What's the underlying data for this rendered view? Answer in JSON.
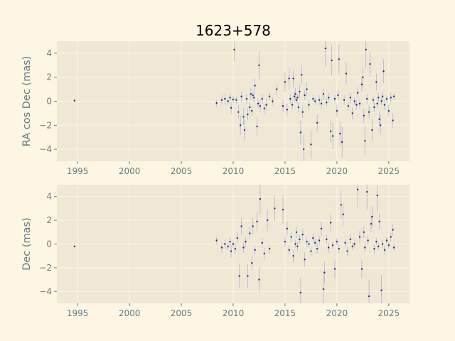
{
  "chart_data": [
    {
      "type": "scatter",
      "title": "1623+578",
      "ylabel": "RA cos Dec (mas)",
      "xlim": [
        1993,
        2027
      ],
      "ylim": [
        -5,
        5
      ],
      "xticks": [
        1995,
        2000,
        2005,
        2010,
        2015,
        2020,
        2025
      ],
      "yticks": [
        -4,
        -2,
        0,
        2,
        4
      ],
      "grid": true,
      "points": [
        [
          1994.7,
          0.05,
          0.0
        ],
        [
          2008.4,
          -0.15,
          0.3
        ],
        [
          2008.9,
          0.1,
          0.4
        ],
        [
          2009.2,
          0.2,
          0.5
        ],
        [
          2009.5,
          0.0,
          0.3
        ],
        [
          2009.7,
          0.3,
          0.4
        ],
        [
          2009.8,
          -0.55,
          0.5
        ],
        [
          2010.0,
          0.15,
          0.3
        ],
        [
          2010.1,
          4.3,
          1.0
        ],
        [
          2010.3,
          0.1,
          0.3
        ],
        [
          2010.5,
          -0.9,
          0.6
        ],
        [
          2010.7,
          -2.0,
          0.8
        ],
        [
          2010.8,
          0.4,
          0.4
        ],
        [
          2011.0,
          -1.3,
          0.7
        ],
        [
          2011.1,
          -2.4,
          0.9
        ],
        [
          2011.3,
          0.2,
          0.4
        ],
        [
          2011.4,
          -1.1,
          0.5
        ],
        [
          2011.6,
          -0.5,
          0.4
        ],
        [
          2011.7,
          0.6,
          0.5
        ],
        [
          2011.8,
          -0.8,
          0.4
        ],
        [
          2011.9,
          0.5,
          0.3
        ],
        [
          2012.0,
          0.3,
          0.4
        ],
        [
          2012.1,
          1.3,
          0.6
        ],
        [
          2012.3,
          -2.1,
          0.8
        ],
        [
          2012.4,
          -0.2,
          0.4
        ],
        [
          2012.5,
          3.0,
          1.2
        ],
        [
          2012.6,
          -0.4,
          0.5
        ],
        [
          2012.8,
          0.2,
          0.4
        ],
        [
          2013.0,
          -0.6,
          0.4
        ],
        [
          2013.2,
          -0.3,
          0.5
        ],
        [
          2013.5,
          0.4,
          0.3
        ],
        [
          2013.8,
          0.0,
          0.3
        ],
        [
          2014.2,
          1.0,
          0.5
        ],
        [
          2014.8,
          -0.4,
          0.5
        ],
        [
          2015.0,
          1.6,
          0.8
        ],
        [
          2015.2,
          -0.7,
          0.5
        ],
        [
          2015.4,
          1.9,
          0.9
        ],
        [
          2015.5,
          0.2,
          0.4
        ],
        [
          2015.7,
          -0.3,
          0.4
        ],
        [
          2015.8,
          1.9,
          0.7
        ],
        [
          2015.9,
          0.4,
          0.4
        ],
        [
          2016.0,
          0.6,
          0.5
        ],
        [
          2016.1,
          0.1,
          0.3
        ],
        [
          2016.2,
          0.3,
          0.3
        ],
        [
          2016.3,
          -0.5,
          0.4
        ],
        [
          2016.4,
          0.8,
          0.5
        ],
        [
          2016.5,
          -2.6,
          1.0
        ],
        [
          2016.6,
          2.2,
          0.8
        ],
        [
          2016.7,
          -0.9,
          0.5
        ],
        [
          2016.8,
          -4.0,
          1.2
        ],
        [
          2016.9,
          0.5,
          0.4
        ],
        [
          2017.1,
          1.0,
          0.6
        ],
        [
          2017.3,
          -0.3,
          0.4
        ],
        [
          2017.5,
          -3.6,
          1.2
        ],
        [
          2017.7,
          0.2,
          0.3
        ],
        [
          2017.9,
          0.0,
          0.3
        ],
        [
          2018.1,
          -1.8,
          0.7
        ],
        [
          2018.3,
          0.1,
          0.4
        ],
        [
          2018.5,
          -0.2,
          0.4
        ],
        [
          2018.7,
          0.6,
          0.5
        ],
        [
          2018.9,
          4.4,
          1.5
        ],
        [
          2019.0,
          -0.1,
          0.3
        ],
        [
          2019.2,
          0.3,
          0.4
        ],
        [
          2019.4,
          -2.5,
          0.9
        ],
        [
          2019.5,
          3.4,
          1.3
        ],
        [
          2019.6,
          -2.9,
          1.1
        ],
        [
          2019.8,
          0.2,
          0.3
        ],
        [
          2020.0,
          -0.8,
          0.5
        ],
        [
          2020.1,
          0.5,
          0.4
        ],
        [
          2020.2,
          3.5,
          1.2
        ],
        [
          2020.3,
          -2.7,
          1.0
        ],
        [
          2020.5,
          -3.4,
          1.3
        ],
        [
          2020.7,
          0.1,
          0.4
        ],
        [
          2020.9,
          2.3,
          0.9
        ],
        [
          2021.1,
          -0.4,
          0.4
        ],
        [
          2021.3,
          0.3,
          0.4
        ],
        [
          2021.5,
          -1.0,
          0.5
        ],
        [
          2021.7,
          0.0,
          0.3
        ],
        [
          2021.9,
          -0.3,
          0.4
        ],
        [
          2022.0,
          0.7,
          0.5
        ],
        [
          2022.2,
          -0.2,
          0.4
        ],
        [
          2022.4,
          1.4,
          0.6
        ],
        [
          2022.5,
          2.0,
          0.8
        ],
        [
          2022.6,
          -1.2,
          0.6
        ],
        [
          2022.7,
          -3.3,
          1.2
        ],
        [
          2022.8,
          4.3,
          1.5
        ],
        [
          2022.9,
          0.2,
          0.4
        ],
        [
          2023.1,
          -0.9,
          0.5
        ],
        [
          2023.2,
          3.1,
          1.1
        ],
        [
          2023.4,
          -2.4,
          0.9
        ],
        [
          2023.5,
          0.1,
          0.3
        ],
        [
          2023.6,
          -0.5,
          0.4
        ],
        [
          2023.8,
          1.6,
          0.7
        ],
        [
          2023.9,
          -0.2,
          0.3
        ],
        [
          2024.0,
          0.3,
          0.4
        ],
        [
          2024.1,
          -1.5,
          0.6
        ],
        [
          2024.2,
          -2.0,
          0.8
        ],
        [
          2024.3,
          0.0,
          0.3
        ],
        [
          2024.4,
          0.4,
          0.4
        ],
        [
          2024.5,
          2.5,
          1.0
        ],
        [
          2024.6,
          -0.3,
          0.4
        ],
        [
          2024.8,
          0.2,
          0.3
        ],
        [
          2025.0,
          -0.8,
          0.5
        ],
        [
          2025.2,
          0.3,
          0.4
        ],
        [
          2025.4,
          -1.6,
          0.6
        ],
        [
          2025.5,
          0.4,
          0.3
        ]
      ]
    },
    {
      "type": "scatter",
      "title": "",
      "ylabel": "Dec (mas)",
      "xlim": [
        1993,
        2027
      ],
      "ylim": [
        -5,
        5
      ],
      "xticks": [
        1995,
        2000,
        2005,
        2010,
        2015,
        2020,
        2025
      ],
      "yticks": [
        -4,
        -2,
        0,
        2,
        4
      ],
      "grid": true,
      "points": [
        [
          1994.7,
          -0.2,
          0.0
        ],
        [
          2008.4,
          0.3,
          0.3
        ],
        [
          2008.9,
          -0.3,
          0.4
        ],
        [
          2009.2,
          0.0,
          0.4
        ],
        [
          2009.5,
          -0.2,
          0.3
        ],
        [
          2009.7,
          0.2,
          0.4
        ],
        [
          2009.8,
          -0.6,
          0.5
        ],
        [
          2010.0,
          0.0,
          0.3
        ],
        [
          2010.2,
          -0.4,
          0.4
        ],
        [
          2010.4,
          0.5,
          0.5
        ],
        [
          2010.6,
          -2.7,
          1.0
        ],
        [
          2010.8,
          1.5,
          0.7
        ],
        [
          2011.0,
          -0.3,
          0.4
        ],
        [
          2011.2,
          0.2,
          0.4
        ],
        [
          2011.4,
          -2.7,
          1.0
        ],
        [
          2011.6,
          0.9,
          0.5
        ],
        [
          2011.8,
          -1.6,
          0.6
        ],
        [
          2011.9,
          1.5,
          0.7
        ],
        [
          2012.1,
          -0.5,
          0.4
        ],
        [
          2012.3,
          1.9,
          0.8
        ],
        [
          2012.5,
          -3.0,
          1.1
        ],
        [
          2012.6,
          3.8,
          1.3
        ],
        [
          2012.8,
          0.1,
          0.4
        ],
        [
          2013.0,
          -0.8,
          0.5
        ],
        [
          2013.3,
          2.0,
          0.9
        ],
        [
          2013.5,
          -0.4,
          0.4
        ],
        [
          2014.0,
          3.0,
          1.1
        ],
        [
          2014.8,
          2.9,
          1.2
        ],
        [
          2015.0,
          0.2,
          0.4
        ],
        [
          2015.2,
          1.3,
          0.6
        ],
        [
          2015.4,
          -0.5,
          0.4
        ],
        [
          2015.6,
          0.6,
          0.4
        ],
        [
          2015.8,
          -1.0,
          0.5
        ],
        [
          2016.0,
          0.0,
          0.3
        ],
        [
          2016.1,
          1.0,
          0.5
        ],
        [
          2016.2,
          -0.2,
          0.4
        ],
        [
          2016.4,
          0.4,
          0.4
        ],
        [
          2016.5,
          -4.1,
          1.3
        ],
        [
          2016.7,
          0.8,
          0.5
        ],
        [
          2016.9,
          -1.3,
          0.6
        ],
        [
          2017.1,
          0.2,
          0.4
        ],
        [
          2017.3,
          0.0,
          0.3
        ],
        [
          2017.5,
          -0.6,
          0.4
        ],
        [
          2017.7,
          0.5,
          0.4
        ],
        [
          2017.9,
          0.1,
          0.3
        ],
        [
          2018.1,
          -0.4,
          0.4
        ],
        [
          2018.3,
          0.3,
          0.4
        ],
        [
          2018.5,
          1.3,
          0.6
        ],
        [
          2018.7,
          -3.8,
          1.3
        ],
        [
          2018.8,
          -2.4,
          0.9
        ],
        [
          2019.0,
          0.4,
          0.4
        ],
        [
          2019.2,
          -0.3,
          0.4
        ],
        [
          2019.4,
          1.8,
          0.7
        ],
        [
          2019.6,
          -0.1,
          0.3
        ],
        [
          2019.8,
          -2.1,
          0.8
        ],
        [
          2020.0,
          0.2,
          0.3
        ],
        [
          2020.2,
          -0.4,
          0.4
        ],
        [
          2020.4,
          3.3,
          1.2
        ],
        [
          2020.6,
          2.5,
          1.0
        ],
        [
          2020.8,
          0.1,
          0.3
        ],
        [
          2021.0,
          -0.6,
          0.4
        ],
        [
          2021.3,
          0.4,
          0.4
        ],
        [
          2021.5,
          -0.2,
          0.3
        ],
        [
          2021.7,
          0.0,
          0.3
        ],
        [
          2022.0,
          4.6,
          1.5
        ],
        [
          2022.2,
          0.6,
          0.5
        ],
        [
          2022.4,
          -2.1,
          0.8
        ],
        [
          2022.6,
          1.0,
          0.5
        ],
        [
          2022.7,
          -0.3,
          0.4
        ],
        [
          2022.9,
          4.4,
          1.5
        ],
        [
          2023.0,
          0.3,
          0.4
        ],
        [
          2023.1,
          -4.4,
          1.4
        ],
        [
          2023.3,
          1.7,
          0.7
        ],
        [
          2023.4,
          2.3,
          0.9
        ],
        [
          2023.6,
          -0.4,
          0.4
        ],
        [
          2023.8,
          0.2,
          0.3
        ],
        [
          2023.9,
          4.1,
          1.4
        ],
        [
          2024.0,
          -0.2,
          0.3
        ],
        [
          2024.1,
          1.9,
          0.7
        ],
        [
          2024.3,
          -3.9,
          1.3
        ],
        [
          2024.4,
          0.0,
          0.3
        ],
        [
          2024.6,
          -0.5,
          0.4
        ],
        [
          2024.8,
          0.3,
          0.3
        ],
        [
          2025.0,
          -0.1,
          0.3
        ],
        [
          2025.2,
          0.6,
          0.4
        ],
        [
          2025.4,
          1.2,
          0.5
        ],
        [
          2025.5,
          -0.3,
          0.3
        ]
      ]
    }
  ]
}
